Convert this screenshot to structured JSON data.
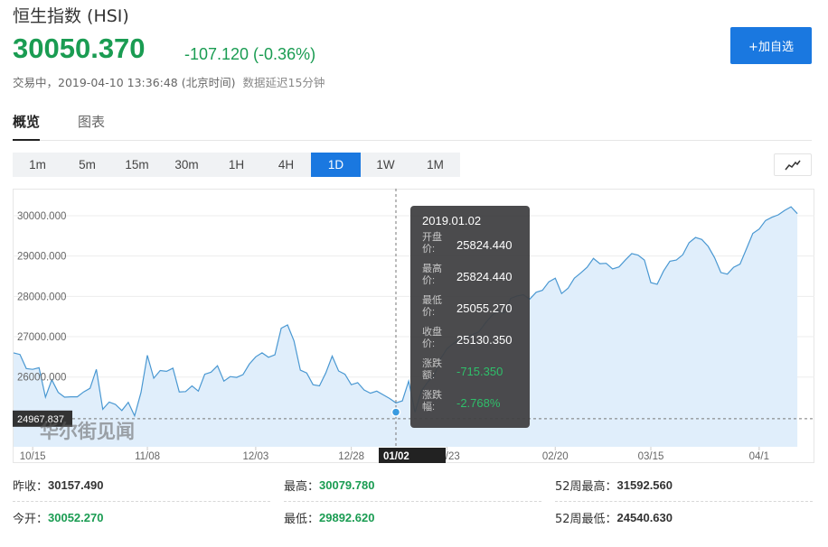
{
  "header": {
    "title": "恒生指数 (HSI)",
    "price": "30050.370",
    "change": "-107.120 (-0.36%)",
    "status": "交易中，2019-04-10 13:36:48 (北京时间)",
    "delay": "数据延迟15分钟",
    "add_button": "+加自选"
  },
  "tabs": [
    "概览",
    "图表"
  ],
  "intervals": [
    "1m",
    "5m",
    "15m",
    "30m",
    "1H",
    "4H",
    "1D",
    "1W",
    "1M"
  ],
  "active_interval": "1D",
  "watermark": "华尔街见闻",
  "colors": {
    "accent": "#1a78e0",
    "up": "#1a9c52",
    "line": "#4a98d2",
    "fill": "#e0eefb"
  },
  "tooltip": {
    "date": "2019.01.02",
    "rows": [
      {
        "label": "开盘价:",
        "value": "25824.440"
      },
      {
        "label": "最高价:",
        "value": "25824.440"
      },
      {
        "label": "最低价:",
        "value": "25055.270"
      },
      {
        "label": "收盘价:",
        "value": "25130.350"
      },
      {
        "label": "涨跌额:",
        "value": "-715.350"
      },
      {
        "label": "涨跌幅:",
        "value": "-2.768%"
      }
    ]
  },
  "crosshair": {
    "x_label": "01/02",
    "y_label": "24967.837"
  },
  "stats": {
    "prev_close_label": "昨收：",
    "prev_close": "30157.490",
    "open_label": "今开：",
    "open": "30052.270",
    "high_label": "最高：",
    "high": "30079.780",
    "low_label": "最低：",
    "low": "29892.620",
    "w52_high_label": "52周最高：",
    "w52_high": "31592.560",
    "w52_low_label": "52周最低：",
    "w52_low": "24540.630"
  },
  "chart_data": {
    "type": "area",
    "y_ticks": [
      "30000.000",
      "29000.000",
      "28000.000",
      "27000.000",
      "26000.000"
    ],
    "y_tick_values": [
      30000,
      29000,
      28000,
      27000,
      26000
    ],
    "x_tick_labels": [
      "10/15",
      "11/08",
      "12/03",
      "12/28",
      "01/23",
      "02/20",
      "03/15",
      "04/1"
    ],
    "x_tick_index": [
      3,
      21,
      38,
      53,
      68,
      85,
      100,
      117
    ],
    "ylim": [
      24270,
      30670
    ],
    "grid": true,
    "values": [
      26600,
      26560,
      26210,
      26190,
      26230,
      25500,
      25930,
      25620,
      25500,
      25510,
      25510,
      25630,
      25720,
      26190,
      25200,
      25380,
      25320,
      25170,
      25370,
      25040,
      25620,
      26540,
      25970,
      26160,
      26140,
      26220,
      25630,
      25640,
      25780,
      25650,
      26070,
      26120,
      26280,
      25900,
      26010,
      25990,
      26060,
      26320,
      26500,
      26600,
      26490,
      26550,
      27210,
      27290,
      26900,
      26170,
      26100,
      25810,
      25780,
      26100,
      26520,
      26150,
      26070,
      25810,
      25860,
      25680,
      25600,
      25650,
      25560,
      25470,
      25360,
      25410,
      25900,
      25130,
      25660,
      25880,
      26040,
      26450,
      26700,
      26830,
      26940,
      26980,
      27050,
      27120,
      27330,
      27520,
      27640,
      27590,
      27950,
      28010,
      28040,
      27930,
      28100,
      28150,
      28360,
      28450,
      28070,
      28200,
      28450,
      28580,
      28720,
      28940,
      28810,
      28820,
      28680,
      28730,
      28900,
      29060,
      29020,
      28900,
      28340,
      28300,
      28630,
      28870,
      28900,
      29030,
      29330,
      29460,
      29410,
      29240,
      28960,
      28590,
      28550,
      28720,
      28800,
      29180,
      29560,
      29670,
      29880,
      29960,
      30020,
      30130,
      30220,
      30050
    ]
  }
}
